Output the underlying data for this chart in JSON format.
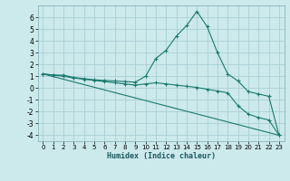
{
  "xlabel": "Humidex (Indice chaleur)",
  "bg_color": "#cce9ec",
  "grid_color": "#aacfd4",
  "line_color": "#1a7a6e",
  "xlim": [
    -0.5,
    23.5
  ],
  "ylim": [
    -4.5,
    7.0
  ],
  "yticks": [
    -4,
    -3,
    -2,
    -1,
    0,
    1,
    2,
    3,
    4,
    5,
    6
  ],
  "xticks": [
    0,
    1,
    2,
    3,
    4,
    5,
    6,
    7,
    8,
    9,
    10,
    11,
    12,
    13,
    14,
    15,
    16,
    17,
    18,
    19,
    20,
    21,
    22,
    23
  ],
  "series": [
    {
      "x": [
        0,
        1,
        2,
        3,
        4,
        5,
        6,
        7,
        8,
        9,
        10,
        11,
        12,
        13,
        14,
        15,
        16,
        17,
        18,
        19,
        20,
        21,
        22,
        23
      ],
      "y": [
        1.2,
        1.1,
        1.1,
        0.9,
        0.8,
        0.7,
        0.65,
        0.6,
        0.55,
        0.5,
        1.0,
        2.5,
        3.2,
        4.4,
        5.3,
        6.5,
        5.2,
        3.0,
        1.2,
        0.6,
        -0.3,
        -0.5,
        -0.7,
        -4.0
      ],
      "marker": true
    },
    {
      "x": [
        0,
        1,
        2,
        3,
        4,
        5,
        6,
        7,
        8,
        9,
        10,
        11,
        12,
        13,
        14,
        15,
        16,
        17,
        18,
        19,
        20,
        21,
        22,
        23
      ],
      "y": [
        1.2,
        1.1,
        1.0,
        0.85,
        0.75,
        0.65,
        0.55,
        0.45,
        0.35,
        0.25,
        0.35,
        0.45,
        0.35,
        0.25,
        0.15,
        0.05,
        -0.1,
        -0.25,
        -0.4,
        -1.5,
        -2.2,
        -2.5,
        -2.7,
        -4.0
      ],
      "marker": true
    },
    {
      "x": [
        0,
        23
      ],
      "y": [
        1.2,
        -4.0
      ],
      "marker": false
    }
  ]
}
